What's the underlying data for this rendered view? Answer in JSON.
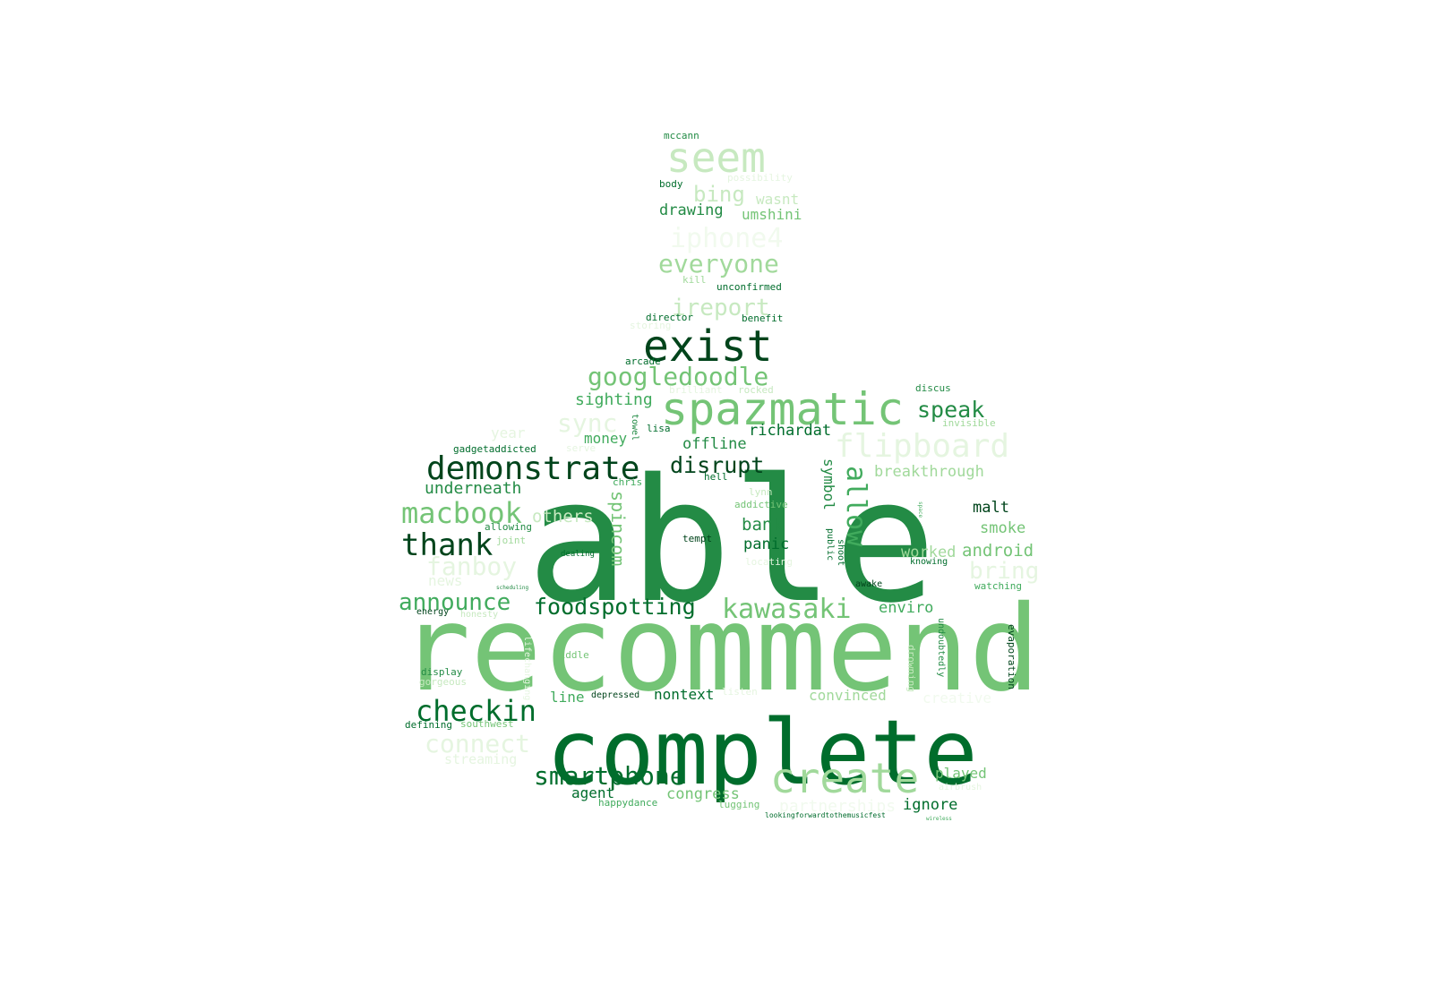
{
  "colors": {
    "background": "#ffffff",
    "palette": {
      "g1": "#00441b",
      "g2": "#006d2c",
      "g3": "#238b45",
      "g4": "#41ab5d",
      "g5": "#74c476",
      "g6": "#a1d99b",
      "g7": "#c7e9c0",
      "g8": "#e5f5e0",
      "g9": "#f1faee"
    }
  },
  "words": [
    {
      "text": "able",
      "color": "g3"
    },
    {
      "text": "recommend",
      "color": "g5"
    },
    {
      "text": "complete",
      "color": "g2"
    },
    {
      "text": "spazmatic",
      "color": "g5"
    },
    {
      "text": "exist",
      "color": "g1"
    },
    {
      "text": "create",
      "color": "g6"
    },
    {
      "text": "demonstrate",
      "color": "g1"
    },
    {
      "text": "seem",
      "color": "g7"
    },
    {
      "text": "flipboard",
      "color": "g8"
    },
    {
      "text": "macbook",
      "color": "g5"
    },
    {
      "text": "thank",
      "color": "g1"
    },
    {
      "text": "kawasaki",
      "color": "g5"
    },
    {
      "text": "smartphone",
      "color": "g2"
    },
    {
      "text": "checkin",
      "color": "g2"
    },
    {
      "text": "connect",
      "color": "g8"
    },
    {
      "text": "googledoodle",
      "color": "g5"
    },
    {
      "text": "everyone",
      "color": "g6"
    },
    {
      "text": "iphone4",
      "color": "g9"
    },
    {
      "text": "announce",
      "color": "g4"
    },
    {
      "text": "foodspotting",
      "color": "g2"
    },
    {
      "text": "disrupt",
      "color": "g1"
    },
    {
      "text": "allow",
      "color": "g4"
    },
    {
      "text": "fanboy",
      "color": "g8"
    },
    {
      "text": "ireport",
      "color": "g7"
    },
    {
      "text": "sync",
      "color": "g8"
    },
    {
      "text": "speak",
      "color": "g3"
    },
    {
      "text": "bring",
      "color": "g8"
    },
    {
      "text": "bing",
      "color": "g7"
    },
    {
      "text": "spincom",
      "color": "g5"
    },
    {
      "text": "underneath",
      "color": "g3"
    },
    {
      "text": "others",
      "color": "g7"
    },
    {
      "text": "breakthrough",
      "color": "g6"
    },
    {
      "text": "sighting",
      "color": "g4"
    },
    {
      "text": "android",
      "color": "g5"
    },
    {
      "text": "offline",
      "color": "g3"
    },
    {
      "text": "richardat",
      "color": "g2"
    },
    {
      "text": "bank",
      "color": "g3"
    },
    {
      "text": "panic",
      "color": "g2"
    },
    {
      "text": "malt",
      "color": "g1"
    },
    {
      "text": "smoke",
      "color": "g5"
    },
    {
      "text": "worked",
      "color": "g6"
    },
    {
      "text": "drawing",
      "color": "g3"
    },
    {
      "text": "umshini",
      "color": "g5"
    },
    {
      "text": "wasnt",
      "color": "g7"
    },
    {
      "text": "money",
      "color": "g4"
    },
    {
      "text": "year",
      "color": "g8"
    },
    {
      "text": "symbol",
      "color": "g3"
    },
    {
      "text": "enviro",
      "color": "g4"
    },
    {
      "text": "ignore",
      "color": "g2"
    },
    {
      "text": "played",
      "color": "g5"
    },
    {
      "text": "congress",
      "color": "g5"
    },
    {
      "text": "agent",
      "color": "g2"
    },
    {
      "text": "streaming",
      "color": "g8"
    },
    {
      "text": "nontext",
      "color": "g2"
    },
    {
      "text": "line",
      "color": "g4"
    },
    {
      "text": "convinced",
      "color": "g6"
    },
    {
      "text": "creative",
      "color": "g9"
    },
    {
      "text": "news",
      "color": "g8"
    },
    {
      "text": "partnerships",
      "color": "g9"
    },
    {
      "text": "watching",
      "color": "g4"
    },
    {
      "text": "mccann",
      "color": "g3"
    },
    {
      "text": "possibility",
      "color": "g8"
    },
    {
      "text": "body",
      "color": "g2"
    },
    {
      "text": "kill",
      "color": "g6"
    },
    {
      "text": "unconfirmed",
      "color": "g2"
    },
    {
      "text": "director",
      "color": "g2"
    },
    {
      "text": "benefit",
      "color": "g2"
    },
    {
      "text": "storing",
      "color": "g8"
    },
    {
      "text": "arcade",
      "color": "g2"
    },
    {
      "text": "brilliant",
      "color": "g8"
    },
    {
      "text": "rocked",
      "color": "g7"
    },
    {
      "text": "discus",
      "color": "g3"
    },
    {
      "text": "invisible",
      "color": "g6"
    },
    {
      "text": "towel",
      "color": "g3"
    },
    {
      "text": "lisa",
      "color": "g2"
    },
    {
      "text": "gadgetaddicted",
      "color": "g2"
    },
    {
      "text": "serve",
      "color": "g8"
    },
    {
      "text": "chris",
      "color": "g4"
    },
    {
      "text": "hell",
      "color": "g2"
    },
    {
      "text": "lynn",
      "color": "g7"
    },
    {
      "text": "addictive",
      "color": "g5"
    },
    {
      "text": "allowing",
      "color": "g3"
    },
    {
      "text": "joint",
      "color": "g6"
    },
    {
      "text": "dealing",
      "color": "g2"
    },
    {
      "text": "tempt",
      "color": "g1"
    },
    {
      "text": "locating",
      "color": "g8"
    },
    {
      "text": "public",
      "color": "g2"
    },
    {
      "text": "shoot",
      "color": "g2"
    },
    {
      "text": "knowing",
      "color": "g2"
    },
    {
      "text": "awake",
      "color": "g1"
    },
    {
      "text": "energy",
      "color": "g1"
    },
    {
      "text": "honesty",
      "color": "g7"
    },
    {
      "text": "scheduling",
      "color": "g3"
    },
    {
      "text": "middle",
      "color": "g5"
    },
    {
      "text": "display",
      "color": "g3"
    },
    {
      "text": "gorgeous",
      "color": "g7"
    },
    {
      "text": "depressed",
      "color": "g1"
    },
    {
      "text": "listen",
      "color": "g8"
    },
    {
      "text": "defining",
      "color": "g2"
    },
    {
      "text": "southwest",
      "color": "g5"
    },
    {
      "text": "happydance",
      "color": "g4"
    },
    {
      "text": "lugging",
      "color": "g5"
    },
    {
      "text": "lookingforwardtothemusicfest",
      "color": "g2"
    },
    {
      "text": "wireless",
      "color": "g4"
    },
    {
      "text": "undoubtedly",
      "color": "g3"
    },
    {
      "text": "drowning",
      "color": "g7"
    },
    {
      "text": "evaporation",
      "color": "g1"
    },
    {
      "text": "airbrush",
      "color": "g8"
    },
    {
      "text": "space",
      "color": "g4"
    },
    {
      "text": "lifechanging",
      "color": "g8"
    }
  ]
}
